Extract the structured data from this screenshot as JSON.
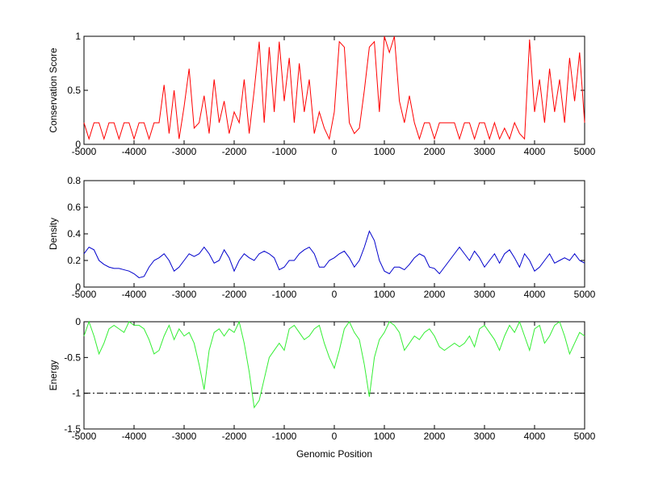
{
  "chart_data": [
    {
      "type": "line",
      "ylabel": "Conservation Score",
      "xlim": [
        -5000,
        5000
      ],
      "xticks": [
        -5000,
        -4000,
        -3000,
        -2000,
        -1000,
        0,
        1000,
        2000,
        3000,
        4000,
        5000
      ],
      "ylim": [
        0,
        1
      ],
      "yticks": [
        0,
        0.5,
        1
      ],
      "x": [
        -5000,
        -4900,
        -4800,
        -4700,
        -4600,
        -4500,
        -4400,
        -4300,
        -4200,
        -4100,
        -4000,
        -3900,
        -3800,
        -3700,
        -3600,
        -3500,
        -3400,
        -3300,
        -3200,
        -3100,
        -3000,
        -2900,
        -2800,
        -2700,
        -2600,
        -2500,
        -2400,
        -2300,
        -2200,
        -2100,
        -2000,
        -1900,
        -1800,
        -1700,
        -1600,
        -1500,
        -1400,
        -1300,
        -1200,
        -1100,
        -1000,
        -900,
        -800,
        -700,
        -600,
        -500,
        -400,
        -300,
        -200,
        -100,
        0,
        100,
        200,
        300,
        400,
        500,
        600,
        700,
        800,
        900,
        1000,
        1100,
        1200,
        1300,
        1400,
        1500,
        1600,
        1700,
        1800,
        1900,
        2000,
        2100,
        2200,
        2300,
        2400,
        2500,
        2600,
        2700,
        2800,
        2900,
        3000,
        3100,
        3200,
        3300,
        3400,
        3500,
        3600,
        3700,
        3800,
        3900,
        4000,
        4100,
        4200,
        4300,
        4400,
        4500,
        4600,
        4700,
        4800,
        4900,
        5000
      ],
      "series": [
        {
          "color": "#ff0000",
          "values": [
            0.2,
            0.05,
            0.2,
            0.2,
            0.05,
            0.2,
            0.2,
            0.05,
            0.2,
            0.2,
            0.05,
            0.2,
            0.2,
            0.05,
            0.2,
            0.2,
            0.55,
            0.1,
            0.5,
            0.05,
            0.35,
            0.7,
            0.15,
            0.2,
            0.45,
            0.1,
            0.6,
            0.2,
            0.4,
            0.1,
            0.3,
            0.2,
            0.6,
            0.1,
            0.5,
            0.95,
            0.2,
            0.9,
            0.3,
            0.95,
            0.4,
            0.8,
            0.2,
            0.75,
            0.3,
            0.6,
            0.1,
            0.3,
            0.15,
            0.05,
            0.3,
            0.95,
            0.9,
            0.2,
            0.1,
            0.15,
            0.5,
            0.9,
            0.95,
            0.3,
            1,
            0.85,
            1,
            0.4,
            0.2,
            0.45,
            0.2,
            0.05,
            0.2,
            0.2,
            0.05,
            0.2,
            0.2,
            0.2,
            0.2,
            0.05,
            0.2,
            0.2,
            0.05,
            0.2,
            0.2,
            0.05,
            0.2,
            0.05,
            0.15,
            0.05,
            0.2,
            0.1,
            0.05,
            0.97,
            0.3,
            0.6,
            0.2,
            0.7,
            0.3,
            0.6,
            0.2,
            0.8,
            0.4,
            0.85,
            0.2
          ]
        }
      ]
    },
    {
      "type": "line",
      "ylabel": "Density",
      "xlim": [
        -5000,
        5000
      ],
      "xticks": [
        -5000,
        -4000,
        -3000,
        -2000,
        -1000,
        0,
        1000,
        2000,
        3000,
        4000,
        5000
      ],
      "ylim": [
        0,
        0.8
      ],
      "yticks": [
        0,
        0.2,
        0.4,
        0.6,
        0.8
      ],
      "x": [
        -5000,
        -4900,
        -4800,
        -4700,
        -4600,
        -4500,
        -4400,
        -4300,
        -4200,
        -4100,
        -4000,
        -3900,
        -3800,
        -3700,
        -3600,
        -3500,
        -3400,
        -3300,
        -3200,
        -3100,
        -3000,
        -2900,
        -2800,
        -2700,
        -2600,
        -2500,
        -2400,
        -2300,
        -2200,
        -2100,
        -2000,
        -1900,
        -1800,
        -1700,
        -1600,
        -1500,
        -1400,
        -1300,
        -1200,
        -1100,
        -1000,
        -900,
        -800,
        -700,
        -600,
        -500,
        -400,
        -300,
        -200,
        -100,
        0,
        100,
        200,
        300,
        400,
        500,
        600,
        700,
        800,
        900,
        1000,
        1100,
        1200,
        1300,
        1400,
        1500,
        1600,
        1700,
        1800,
        1900,
        2000,
        2100,
        2200,
        2300,
        2400,
        2500,
        2600,
        2700,
        2800,
        2900,
        3000,
        3100,
        3200,
        3300,
        3400,
        3500,
        3600,
        3700,
        3800,
        3900,
        4000,
        4100,
        4200,
        4300,
        4400,
        4500,
        4600,
        4700,
        4800,
        4900,
        5000
      ],
      "series": [
        {
          "color": "#0000cc",
          "values": [
            0.25,
            0.3,
            0.28,
            0.2,
            0.17,
            0.15,
            0.14,
            0.14,
            0.13,
            0.12,
            0.1,
            0.07,
            0.08,
            0.15,
            0.2,
            0.22,
            0.25,
            0.2,
            0.12,
            0.15,
            0.2,
            0.25,
            0.23,
            0.25,
            0.3,
            0.25,
            0.18,
            0.2,
            0.28,
            0.22,
            0.12,
            0.2,
            0.25,
            0.22,
            0.2,
            0.25,
            0.27,
            0.25,
            0.22,
            0.13,
            0.15,
            0.2,
            0.2,
            0.25,
            0.28,
            0.3,
            0.25,
            0.15,
            0.15,
            0.2,
            0.22,
            0.25,
            0.27,
            0.22,
            0.15,
            0.2,
            0.3,
            0.42,
            0.35,
            0.2,
            0.12,
            0.1,
            0.15,
            0.15,
            0.13,
            0.17,
            0.22,
            0.25,
            0.23,
            0.15,
            0.14,
            0.1,
            0.15,
            0.2,
            0.25,
            0.3,
            0.25,
            0.2,
            0.27,
            0.22,
            0.15,
            0.2,
            0.25,
            0.18,
            0.25,
            0.28,
            0.22,
            0.15,
            0.25,
            0.2,
            0.12,
            0.15,
            0.2,
            0.25,
            0.18,
            0.2,
            0.22,
            0.2,
            0.25,
            0.2,
            0.18
          ]
        }
      ]
    },
    {
      "type": "line",
      "ylabel": "Energy",
      "xlabel": "Genomic Position",
      "xlim": [
        -5000,
        5000
      ],
      "xticks": [
        -5000,
        -4000,
        -3000,
        -2000,
        -1000,
        0,
        1000,
        2000,
        3000,
        4000,
        5000
      ],
      "ylim": [
        -1.5,
        0
      ],
      "yticks": [
        -1.5,
        -1,
        -0.5,
        0
      ],
      "reference_line": {
        "value": -1,
        "color": "#000000",
        "style": "dashdot"
      },
      "x": [
        -5000,
        -4900,
        -4800,
        -4700,
        -4600,
        -4500,
        -4400,
        -4300,
        -4200,
        -4100,
        -4000,
        -3900,
        -3800,
        -3700,
        -3600,
        -3500,
        -3400,
        -3300,
        -3200,
        -3100,
        -3000,
        -2900,
        -2800,
        -2700,
        -2600,
        -2500,
        -2400,
        -2300,
        -2200,
        -2100,
        -2000,
        -1900,
        -1800,
        -1700,
        -1600,
        -1500,
        -1400,
        -1300,
        -1200,
        -1100,
        -1000,
        -900,
        -800,
        -700,
        -600,
        -500,
        -400,
        -300,
        -200,
        -100,
        0,
        100,
        200,
        300,
        400,
        500,
        600,
        700,
        800,
        900,
        1000,
        1100,
        1200,
        1300,
        1400,
        1500,
        1600,
        1700,
        1800,
        1900,
        2000,
        2100,
        2200,
        2300,
        2400,
        2500,
        2600,
        2700,
        2800,
        2900,
        3000,
        3100,
        3200,
        3300,
        3400,
        3500,
        3600,
        3700,
        3800,
        3900,
        4000,
        4100,
        4200,
        4300,
        4400,
        4500,
        4600,
        4700,
        4800,
        4900,
        5000
      ],
      "series": [
        {
          "color": "#33ee33",
          "values": [
            -0.2,
            0,
            -0.2,
            -0.45,
            -0.3,
            -0.1,
            -0.05,
            -0.1,
            -0.15,
            0,
            -0.05,
            -0.05,
            -0.1,
            -0.25,
            -0.45,
            -0.4,
            -0.2,
            -0.05,
            -0.25,
            -0.1,
            -0.2,
            -0.15,
            -0.3,
            -0.6,
            -0.95,
            -0.4,
            -0.15,
            -0.1,
            -0.2,
            -0.1,
            -0.15,
            0,
            -0.3,
            -0.7,
            -1.2,
            -1.1,
            -0.8,
            -0.5,
            -0.4,
            -0.3,
            -0.4,
            -0.1,
            -0.05,
            -0.15,
            -0.25,
            -0.2,
            -0.1,
            -0.05,
            -0.3,
            -0.5,
            -0.65,
            -0.4,
            -0.1,
            0,
            -0.15,
            -0.25,
            -0.6,
            -1.05,
            -0.5,
            -0.25,
            -0.15,
            0,
            -0.05,
            -0.15,
            -0.4,
            -0.3,
            -0.2,
            -0.25,
            -0.15,
            -0.1,
            -0.2,
            -0.35,
            -0.4,
            -0.35,
            -0.3,
            -0.35,
            -0.3,
            -0.2,
            -0.35,
            -0.1,
            -0.05,
            -0.15,
            -0.25,
            -0.4,
            -0.2,
            -0.05,
            -0.15,
            0,
            -0.2,
            -0.4,
            -0.1,
            -0.05,
            -0.3,
            -0.2,
            -0.05,
            0,
            -0.2,
            -0.45,
            -0.3,
            -0.15,
            -0.2
          ]
        }
      ]
    }
  ]
}
